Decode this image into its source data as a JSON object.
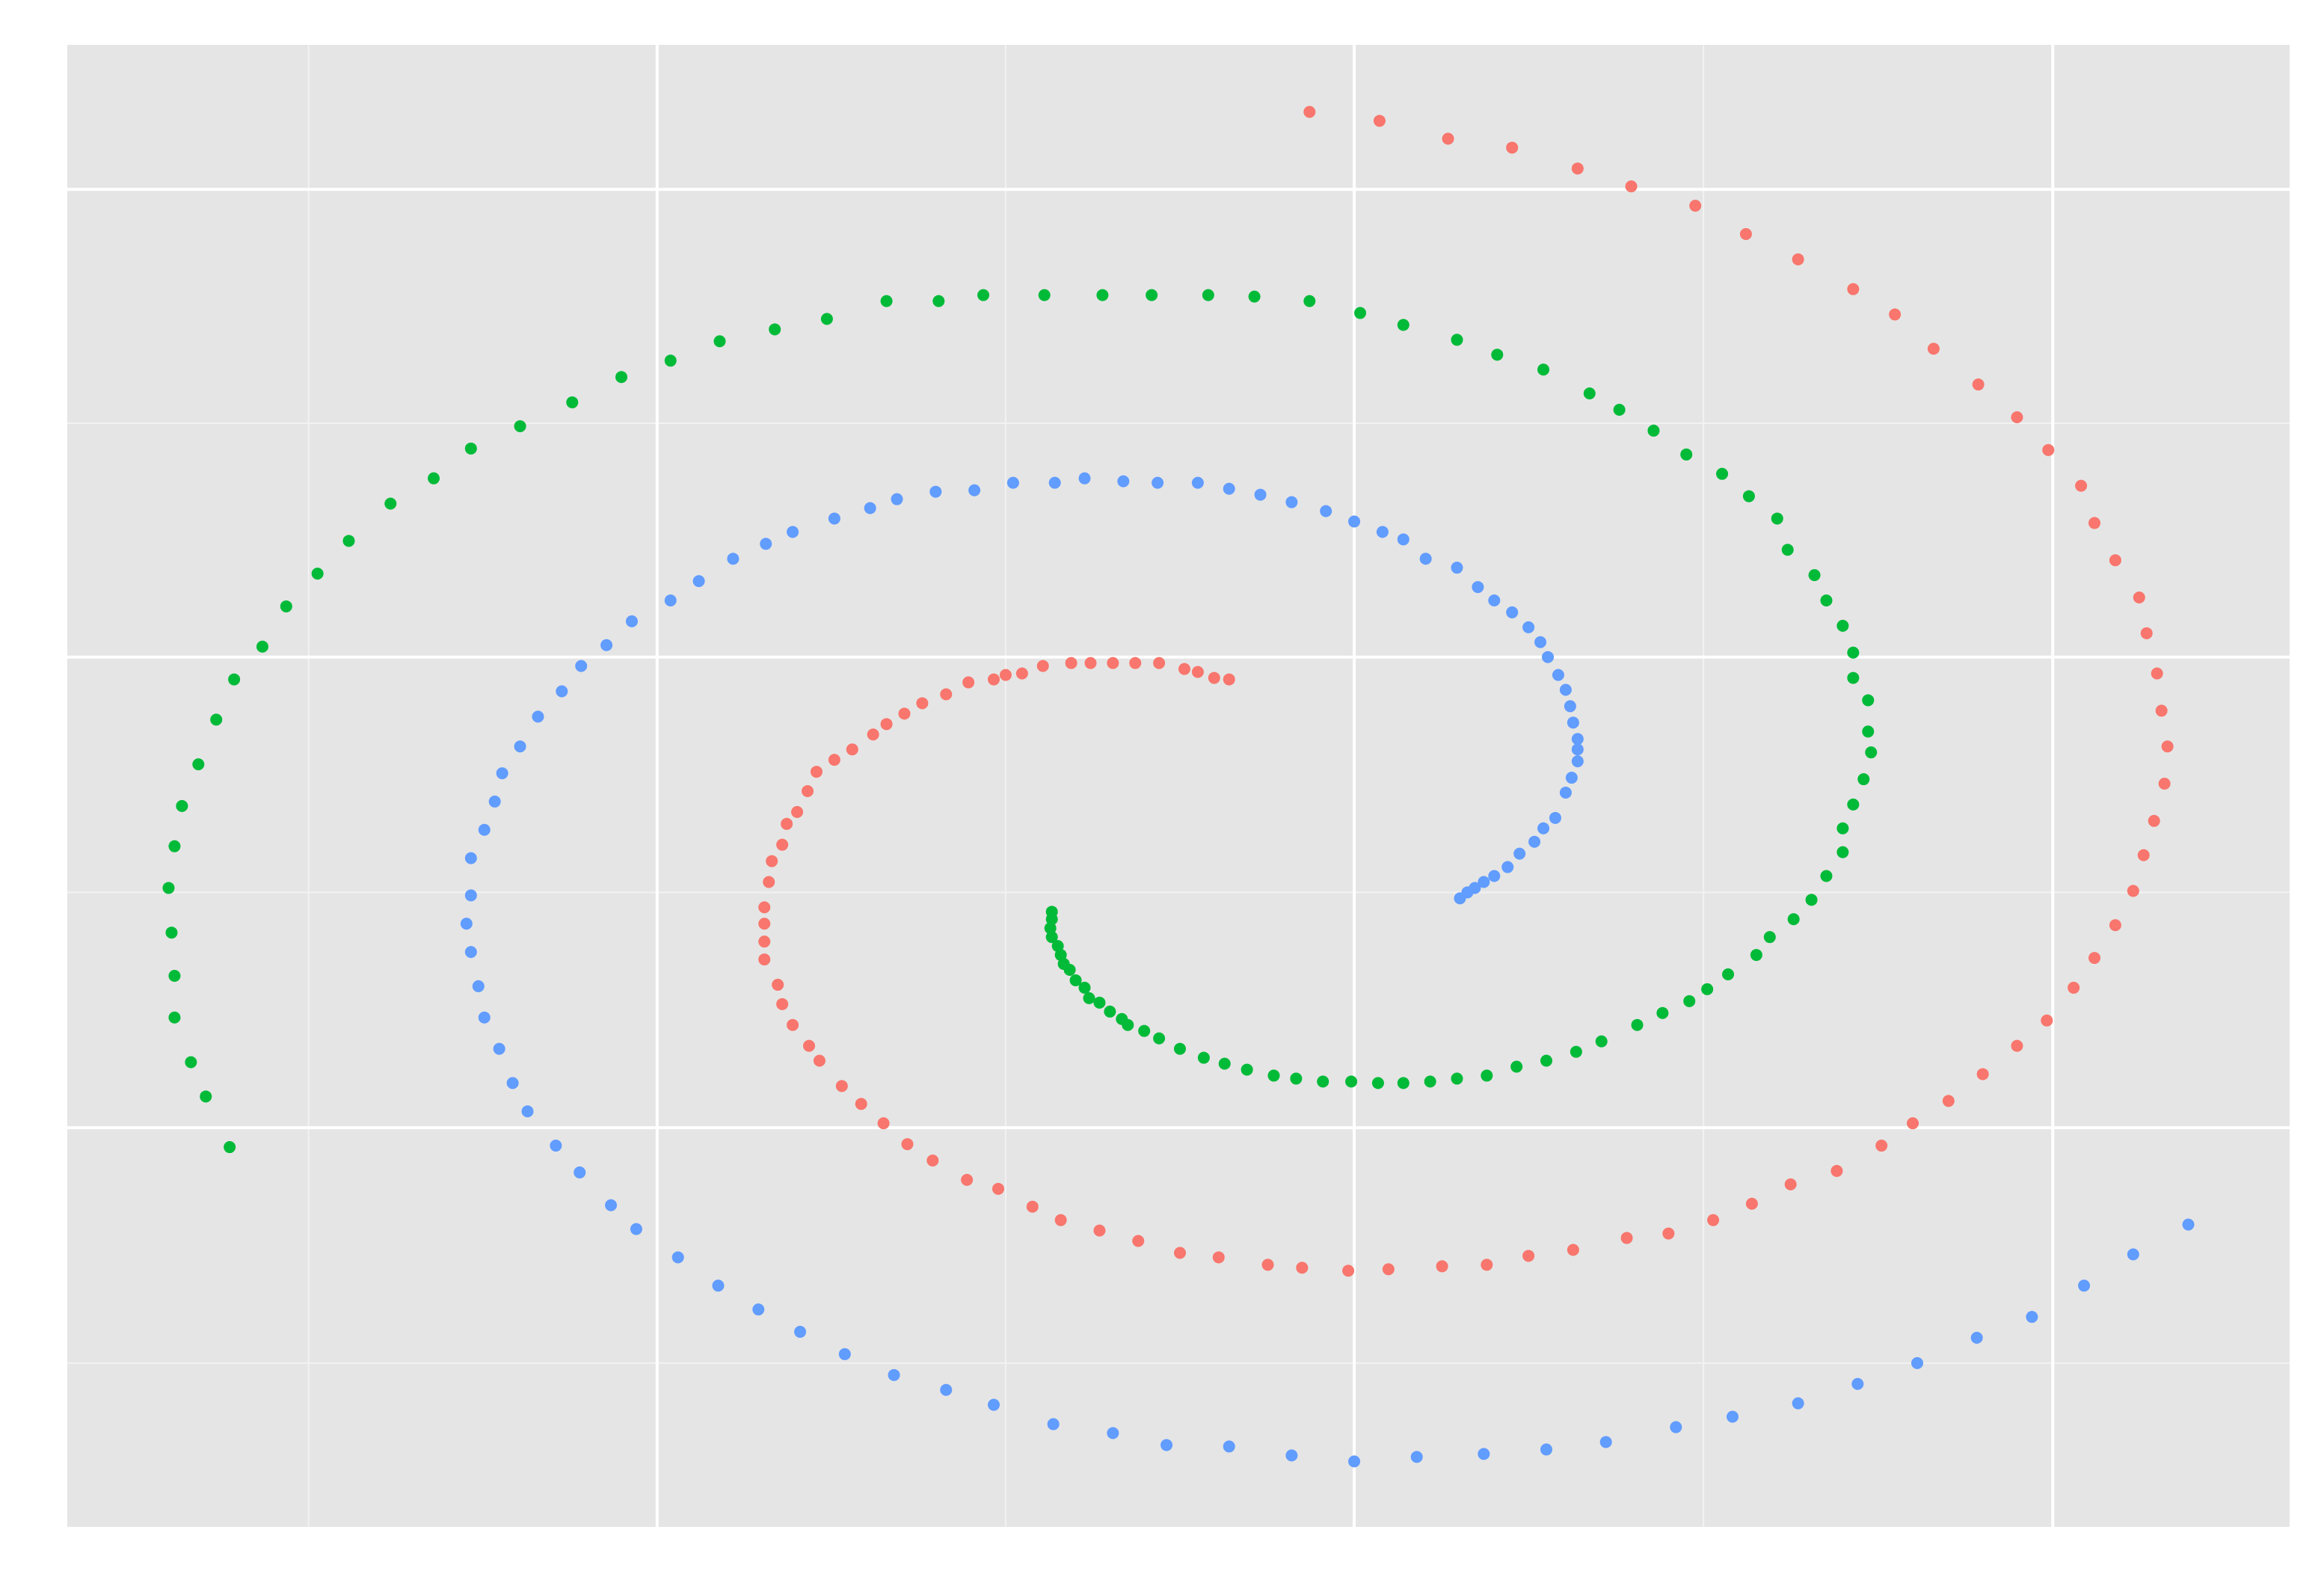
{
  "chart_data": {
    "type": "scatter",
    "xlim": [
      45,
      1537
    ],
    "ylim": [
      -1025,
      -30
    ],
    "xticks": [
      441,
      909,
      1378
    ],
    "yticks": [
      -757,
      -441,
      -127
    ],
    "grid": true,
    "series": [
      {
        "color": "#F8766D",
        "x": [
          825,
          815,
          804,
          795,
          778,
          762,
          747,
          732,
          719,
          700,
          686,
          675,
          667,
          650,
          635,
          619,
          607,
          595,
          586,
          572,
          560,
          548,
          542,
          535,
          528,
          525,
          518,
          516,
          513,
          513,
          513,
          513,
          522,
          525,
          532,
          543,
          550,
          565,
          578,
          593,
          609,
          626,
          649,
          670,
          693,
          712,
          738,
          764,
          792,
          818,
          851,
          874,
          905,
          932,
          968,
          998,
          1026,
          1056,
          1092,
          1120,
          1150,
          1176,
          1202,
          1233,
          1263,
          1284,
          1308,
          1331,
          1354,
          1374,
          1392,
          1406,
          1420,
          1432,
          1439,
          1446,
          1453,
          1455,
          1451,
          1448,
          1441,
          1436,
          1420,
          1406,
          1397,
          1375,
          1354,
          1328,
          1298,
          1272,
          1244,
          1207,
          1172,
          1138,
          1095,
          1059,
          1015,
          972,
          926,
          879
        ],
        "values": [
          -456,
          -455,
          -451,
          -449,
          -445,
          -445,
          -445,
          -445,
          -445,
          -447,
          -452,
          -453,
          -456,
          -458,
          -466,
          -472,
          -479,
          -486,
          -493,
          -503,
          -510,
          -518,
          -531,
          -545,
          -553,
          -567,
          -578,
          -592,
          -609,
          -620,
          -632,
          -644,
          -661,
          -674,
          -688,
          -702,
          -712,
          -729,
          -741,
          -754,
          -768,
          -779,
          -792,
          -798,
          -810,
          -819,
          -826,
          -833,
          -841,
          -844,
          -849,
          -851,
          -853,
          -852,
          -850,
          -849,
          -843,
          -839,
          -831,
          -828,
          -819,
          -808,
          -795,
          -786,
          -769,
          -754,
          -739,
          -721,
          -702,
          -685,
          -663,
          -643,
          -621,
          -598,
          -574,
          -551,
          -526,
          -501,
          -477,
          -452,
          -425,
          -401,
          -376,
          -351,
          -326,
          -302,
          -280,
          -258,
          -234,
          -211,
          -194,
          -174,
          -157,
          -138,
          -125,
          -113,
          -99,
          -93,
          -81,
          -75
        ]
      },
      {
        "color": "#619CFF",
        "x": [
          980,
          985,
          990,
          996,
          1003,
          1012,
          1020,
          1030,
          1036,
          1044,
          1051,
          1055,
          1059,
          1059,
          1059,
          1056,
          1054,
          1051,
          1046,
          1039,
          1034,
          1026,
          1015,
          1003,
          992,
          978,
          957,
          942,
          928,
          909,
          890,
          867,
          846,
          825,
          804,
          777,
          754,
          728,
          708,
          680,
          654,
          628,
          602,
          584,
          560,
          532,
          514,
          492,
          469,
          450,
          424,
          407,
          390,
          377,
          361,
          349,
          337,
          332,
          325,
          316,
          316,
          313,
          316,
          321,
          325,
          335,
          344,
          354,
          373,
          389,
          410,
          427,
          455,
          482,
          509,
          537,
          567,
          600,
          635,
          667,
          707,
          747,
          783,
          825,
          867,
          909,
          951,
          996,
          1038,
          1078,
          1125,
          1163,
          1207,
          1247,
          1287,
          1327,
          1364,
          1399,
          1432,
          1469
        ],
        "values": [
          -603,
          -599,
          -596,
          -592,
          -588,
          -582,
          -573,
          -565,
          -556,
          -549,
          -532,
          -522,
          -511,
          -503,
          -496,
          -485,
          -474,
          -463,
          -453,
          -441,
          -431,
          -421,
          -411,
          -403,
          -394,
          -381,
          -375,
          -362,
          -357,
          -350,
          -343,
          -337,
          -332,
          -328,
          -324,
          -324,
          -323,
          -321,
          -324,
          -324,
          -329,
          -330,
          -335,
          -341,
          -348,
          -357,
          -365,
          -375,
          -390,
          -403,
          -417,
          -433,
          -447,
          -464,
          -481,
          -501,
          -519,
          -538,
          -557,
          -576,
          -601,
          -620,
          -639,
          -662,
          -683,
          -704,
          -727,
          -746,
          -769,
          -787,
          -809,
          -825,
          -844,
          -863,
          -879,
          -894,
          -909,
          -923,
          -933,
          -943,
          -956,
          -962,
          -970,
          -971,
          -977,
          -981,
          -978,
          -976,
          -973,
          -968,
          -958,
          -951,
          -942,
          -929,
          -915,
          -898,
          -884,
          -863,
          -842,
          -822
        ]
      },
      {
        "color": "#00BA38",
        "x": [
          706,
          706,
          705,
          706,
          710,
          712,
          714,
          718,
          722,
          728,
          731,
          738,
          745,
          753,
          757,
          768,
          778,
          792,
          808,
          822,
          837,
          855,
          870,
          888,
          907,
          925,
          942,
          960,
          978,
          998,
          1018,
          1038,
          1058,
          1075,
          1099,
          1116,
          1134,
          1146,
          1160,
          1179,
          1188,
          1204,
          1216,
          1226,
          1237,
          1237,
          1244,
          1251,
          1256,
          1254,
          1254,
          1244,
          1244,
          1237,
          1226,
          1218,
          1200,
          1193,
          1174,
          1156,
          1132,
          1110,
          1087,
          1067,
          1036,
          1005,
          978,
          942,
          913,
          879,
          842,
          811,
          773,
          740,
          701,
          660,
          630,
          595,
          555,
          520,
          483,
          450,
          417,
          384,
          349,
          316,
          291,
          262,
          234,
          213,
          192,
          176,
          157,
          145,
          133,
          122,
          117,
          113,
          115,
          117,
          117,
          128,
          138,
          154
        ],
        "values": [
          -612,
          -617,
          -623,
          -629,
          -635,
          -641,
          -647,
          -651,
          -658,
          -663,
          -670,
          -673,
          -679,
          -684,
          -688,
          -692,
          -697,
          -704,
          -710,
          -714,
          -718,
          -722,
          -724,
          -726,
          -726,
          -727,
          -727,
          -726,
          -724,
          -722,
          -716,
          -712,
          -706,
          -699,
          -688,
          -680,
          -672,
          -664,
          -654,
          -641,
          -629,
          -617,
          -604,
          -588,
          -572,
          -556,
          -540,
          -523,
          -505,
          -491,
          -470,
          -455,
          -438,
          -420,
          -403,
          -386,
          -369,
          -348,
          -333,
          -318,
          -305,
          -289,
          -275,
          -264,
          -248,
          -238,
          -228,
          -218,
          -210,
          -202,
          -199,
          -198,
          -198,
          -198,
          -198,
          -198,
          -202,
          -202,
          -214,
          -221,
          -229,
          -242,
          -253,
          -270,
          -286,
          -301,
          -321,
          -338,
          -363,
          -385,
          -407,
          -434,
          -456,
          -483,
          -513,
          -541,
          -568,
          -596,
          -626,
          -655,
          -683,
          -713,
          -736,
          -770
        ]
      }
    ]
  }
}
